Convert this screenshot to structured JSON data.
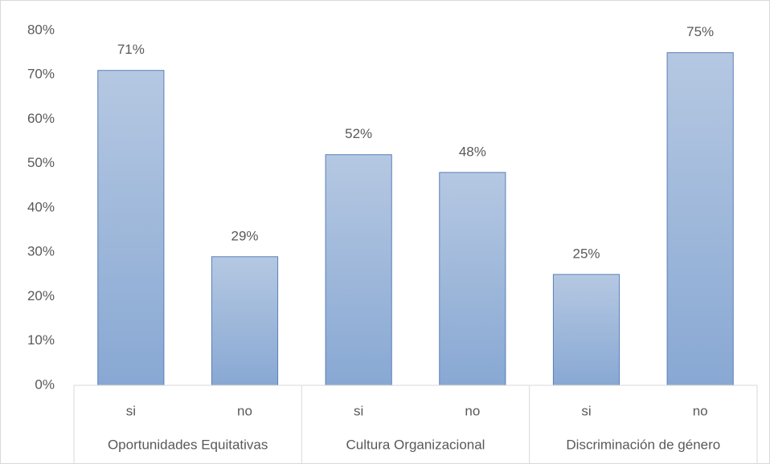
{
  "chart_data": {
    "type": "bar",
    "categories": [
      "si",
      "no",
      "si",
      "no",
      "si",
      "no"
    ],
    "groups": [
      "Oportunidades Equitativas",
      "Cultura Organizacional",
      "Discriminación de género"
    ],
    "values": [
      71,
      29,
      52,
      48,
      25,
      75
    ],
    "value_labels": [
      "71%",
      "29%",
      "52%",
      "48%",
      "25%",
      "75%"
    ],
    "color": "#5a7fb8",
    "ylim": [
      0,
      80
    ],
    "yticks": [
      {
        "value": 0,
        "label": "0%"
      },
      {
        "value": 10,
        "label": "10%"
      },
      {
        "value": 20,
        "label": "20%"
      },
      {
        "value": 30,
        "label": "30%"
      },
      {
        "value": 40,
        "label": "40%"
      },
      {
        "value": 50,
        "label": "50%"
      },
      {
        "value": 60,
        "label": "60%"
      },
      {
        "value": 70,
        "label": "70%"
      },
      {
        "value": 80,
        "label": "80%"
      }
    ],
    "grid": false
  }
}
